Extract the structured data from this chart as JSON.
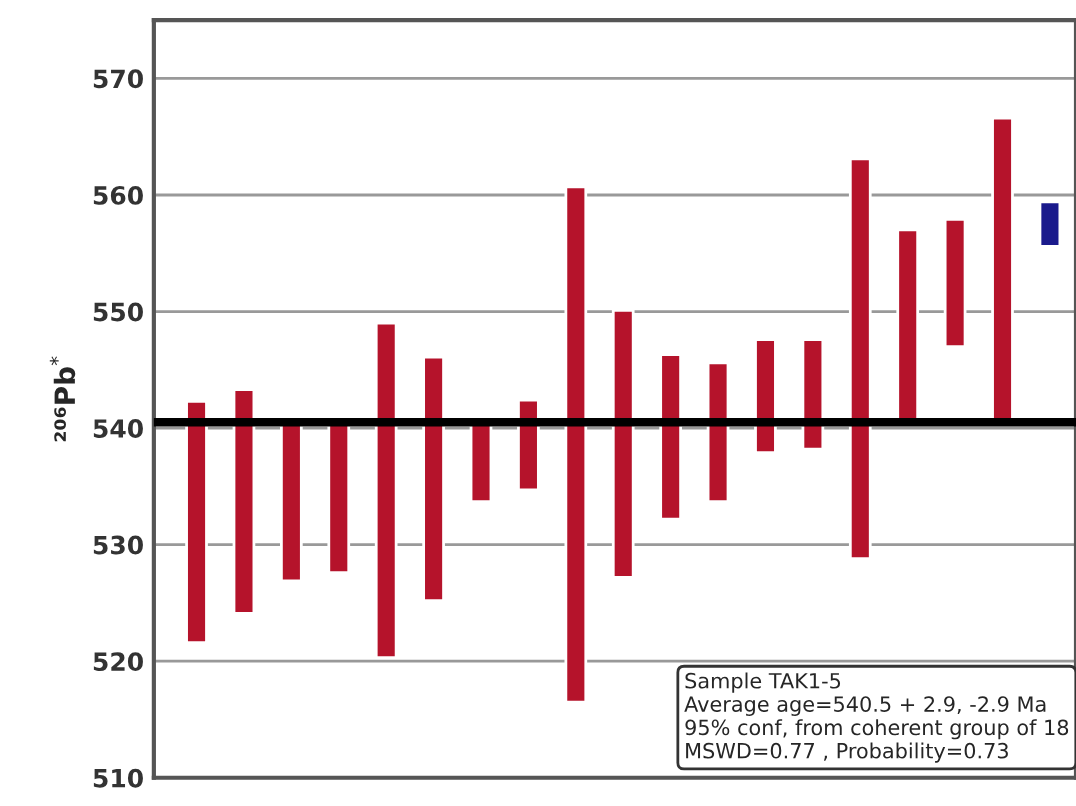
{
  "chart_data": {
    "type": "bar",
    "ylabel": "²⁰⁶Pb$^{*}$",
    "categories": [
      null,
      null,
      null,
      null,
      null,
      null,
      null,
      null,
      null,
      null,
      null,
      null,
      null,
      null,
      null,
      null,
      null,
      null,
      null
    ],
    "base": [
      521.6,
      524.1,
      526.9,
      527.6,
      520.3,
      525.2,
      533.7,
      534.7,
      516.5,
      527.2,
      532.2,
      533.7,
      537.9,
      538.2,
      528.8,
      540.3,
      547.0,
      540.3,
      555.6
    ],
    "values": [
      20.7,
      19.2,
      13.4,
      12.7,
      28.7,
      20.9,
      6.6,
      7.7,
      44.2,
      22.9,
      14.1,
      11.9,
      9.7,
      9.4,
      34.3,
      16.7,
      10.9,
      26.3,
      3.8
    ],
    "colors": [
      "#b5132b",
      "#b5132b",
      "#b5132b",
      "#b5132b",
      "#b5132b",
      "#b5132b",
      "#b5132b",
      "#b5132b",
      "#b5132b",
      "#b5132b",
      "#b5132b",
      "#b5132b",
      "#b5132b",
      "#b5132b",
      "#b5132b",
      "#b5132b",
      "#b5132b",
      "#b5132b",
      "#1a1a8c"
    ],
    "ylim": [
      510,
      575
    ],
    "yticks": [
      510,
      520,
      530,
      540,
      550,
      560,
      570
    ],
    "grid": "y",
    "ref_lines": [
      {
        "axis": "y",
        "value": 540.5,
        "color": "#000000"
      }
    ],
    "annotations": [
      "Sample TAK1-5\nAverage age=540.5 + 2.9, -2.9 Ma\n95% conf, from coherent group of 18\nMSWD=0.77 , Probability=0.73"
    ]
  }
}
